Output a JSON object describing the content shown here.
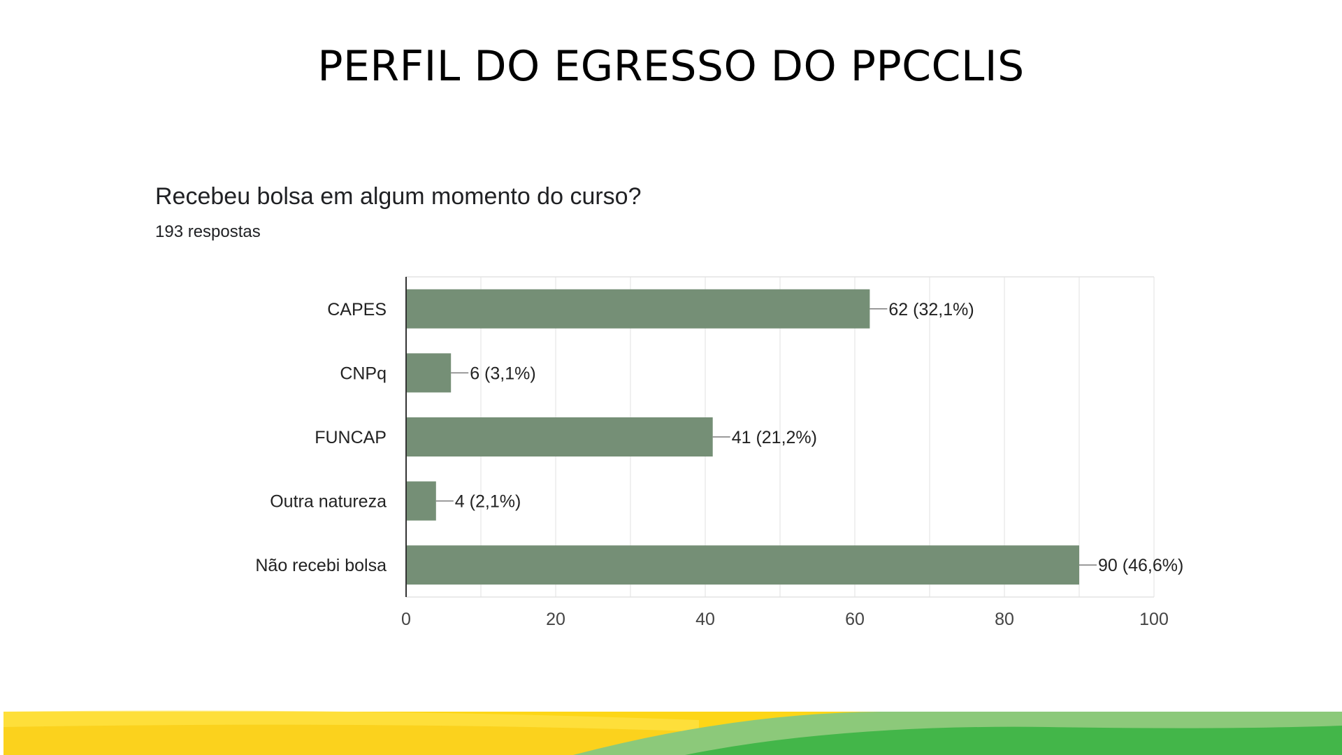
{
  "slide": {
    "title": "PERFIL DO EGRESSO DO PPCCLIS"
  },
  "chart_data": {
    "type": "bar",
    "orientation": "horizontal",
    "title": "Recebeu bolsa em algum momento do curso?",
    "subtitle": "193 respostas",
    "categories": [
      "CAPES",
      "CNPq",
      "FUNCAP",
      "Outra natureza",
      "Não recebi bolsa"
    ],
    "values": [
      62,
      6,
      41,
      4,
      90
    ],
    "data_labels": [
      "62 (32,1%)",
      "6 (3,1%)",
      "41 (21,2%)",
      "4 (2,1%)",
      "90 (46,6%)"
    ],
    "xlim": [
      0,
      100
    ],
    "xticks": [
      0,
      20,
      40,
      60,
      80,
      100
    ],
    "xtick_labels": [
      "0",
      "20",
      "40",
      "60",
      "80",
      "100"
    ],
    "grid": true,
    "bar_color": "#758f76"
  },
  "colors": {
    "footer_yellow": "#fdd617",
    "footer_green": "#43b649"
  }
}
